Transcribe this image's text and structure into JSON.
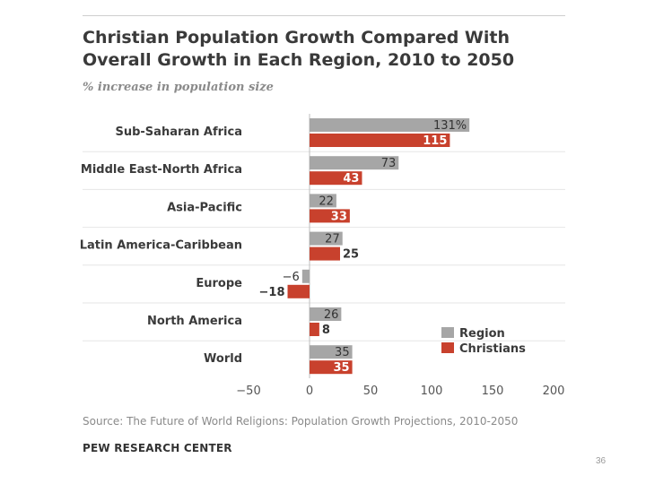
{
  "chart_data": {
    "type": "bar",
    "orientation": "horizontal",
    "title": "Christian Population Growth Compared With Overall Growth in Each Region, 2010 to 2050",
    "subtitle": "% increase in population size",
    "categories": [
      "Sub-Saharan Africa",
      "Middle East-North Africa",
      "Asia-Pacific",
      "Latin America-Caribbean",
      "Europe",
      "North America",
      "World"
    ],
    "series": [
      {
        "name": "Region",
        "color": "#a6a6a6",
        "values": [
          131,
          73,
          22,
          27,
          -6,
          26,
          35
        ],
        "labels": [
          "131%",
          "73",
          "22",
          "27",
          "−6",
          "26",
          "35"
        ]
      },
      {
        "name": "Christians",
        "color": "#c8412d",
        "values": [
          115,
          43,
          33,
          25,
          -18,
          8,
          35
        ],
        "labels": [
          "115",
          "43",
          "33",
          "25",
          "−18",
          "8",
          "35"
        ]
      }
    ],
    "xlim": [
      -50,
      200
    ],
    "xticks": [
      -50,
      0,
      50,
      100,
      150,
      200
    ],
    "xtick_labels": [
      "−50",
      "0",
      "50",
      "100",
      "150",
      "200"
    ],
    "grid": false,
    "legend_position": "bottom-right"
  },
  "source": "Source: The Future of World Religions: Population Growth Projections, 2010-2050",
  "organization": "PEW RESEARCH CENTER",
  "page_number": "36"
}
